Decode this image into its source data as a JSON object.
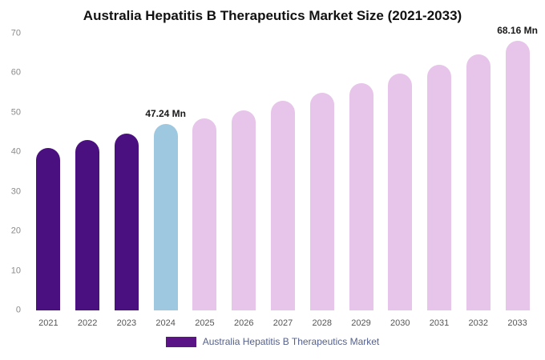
{
  "chart_data": {
    "type": "bar",
    "title": "Australia Hepatitis B Therapeutics Market Size (2021-2033)",
    "categories": [
      "2021",
      "2022",
      "2023",
      "2024",
      "2025",
      "2026",
      "2027",
      "2028",
      "2029",
      "2030",
      "2031",
      "2032",
      "2033"
    ],
    "values": [
      41.0,
      43.0,
      44.8,
      47.24,
      48.5,
      50.5,
      53.0,
      55.0,
      57.5,
      59.8,
      62.2,
      64.8,
      68.16
    ],
    "unit": "Mn",
    "bar_colors": [
      "#4a1080",
      "#4a1080",
      "#4a1080",
      "#9dc8e0",
      "#e7c4e9",
      "#e7c4e9",
      "#e7c4e9",
      "#e7c4e9",
      "#e7c4e9",
      "#e7c4e9",
      "#e7c4e9",
      "#e7c4e9",
      "#e7c4e9"
    ],
    "annotations": [
      {
        "category": "2024",
        "text": "47.24 Mn"
      },
      {
        "category": "2033",
        "text": "68.16 Mn"
      }
    ],
    "xlabel": "",
    "ylabel": "",
    "ylim": [
      0,
      70
    ],
    "yticks": [
      0,
      10,
      20,
      30,
      40,
      50,
      60,
      70
    ],
    "grid": false,
    "legend_position": "bottom"
  },
  "legend": {
    "label": "Australia Hepatitis B Therapeutics Market",
    "swatch_color": "#5a1486"
  }
}
